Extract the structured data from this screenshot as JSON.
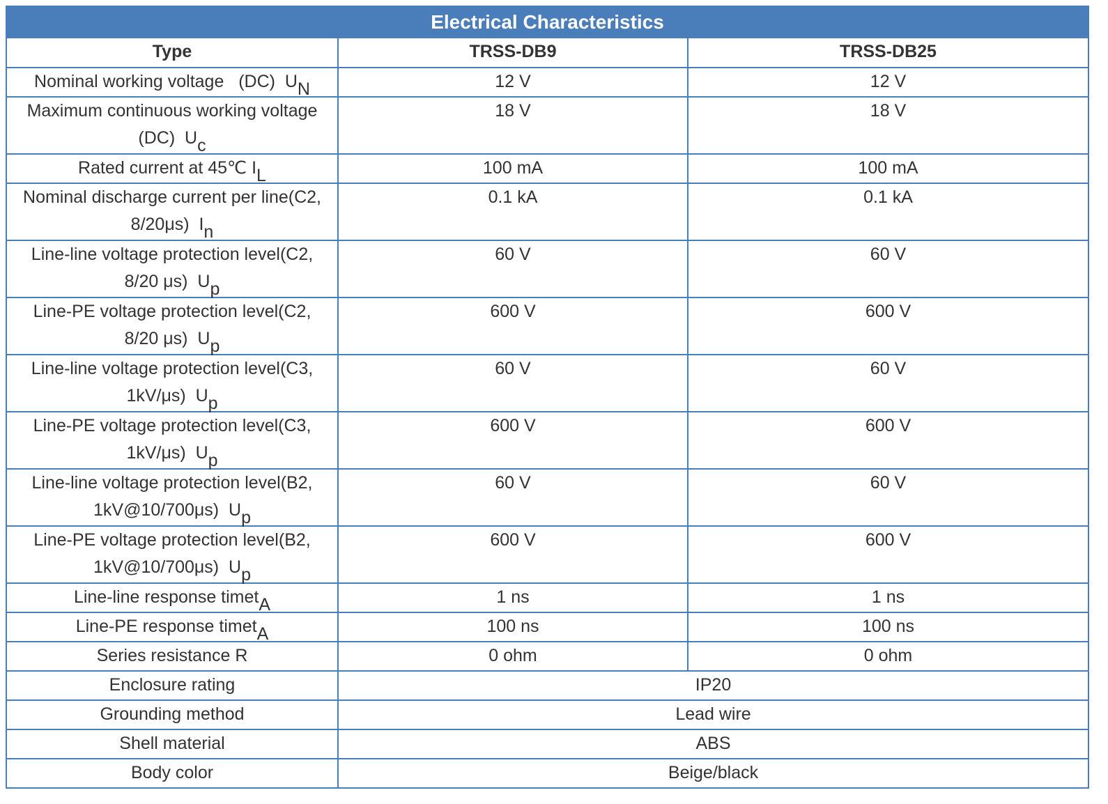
{
  "title": "Electrical Characteristics",
  "header": {
    "type_label": "Type",
    "model1": "TRSS-DB9",
    "model2": "TRSS-DB25"
  },
  "rows": [
    {
      "label": "Nominal working voltage   (DC)  U",
      "sub": "N",
      "v1": "12 V",
      "v2": "12 V"
    },
    {
      "label_line1": "Maximum continuous working voltage",
      "label_line2": "(DC)  U",
      "sub": "c",
      "v1": "18 V",
      "v2": "18 V"
    },
    {
      "label": "Rated current at 45℃ I",
      "sub": "L",
      "v1": "100 mA",
      "v2": "100 mA"
    },
    {
      "label_line1": "Nominal discharge current per line(C2,",
      "label_line2": "8/20μs)  I",
      "sub": "n",
      "v1": "0.1 kA",
      "v2": "0.1 kA"
    },
    {
      "label_line1": "Line-line voltage protection level(C2,",
      "label_line2": "8/20 μs)  U",
      "sub": "p",
      "v1": "60 V",
      "v2": "60 V"
    },
    {
      "label_line1": "Line-PE voltage protection level(C2,",
      "label_line2": "8/20 μs)  U",
      "sub": "p",
      "v1": "600 V",
      "v2": "600 V"
    },
    {
      "label_line1": "Line-line voltage protection level(C3,",
      "label_line2": "1kV/μs)  U",
      "sub": "p",
      "v1": "60 V",
      "v2": "60 V"
    },
    {
      "label_line1": "Line-PE voltage protection level(C3,",
      "label_line2": "1kV/μs)  U",
      "sub": "p",
      "v1": "600 V",
      "v2": "600 V"
    },
    {
      "label_line1": "Line-line voltage protection level(B2,",
      "label_line2": "1kV@10/700μs)  U",
      "sub": "p",
      "v1": "60 V",
      "v2": "60 V"
    },
    {
      "label_line1": "Line-PE voltage protection level(B2,",
      "label_line2": "1kV@10/700μs)  U",
      "sub": "p",
      "v1": "600 V",
      "v2": "600 V"
    },
    {
      "label": "Line-line response timet",
      "sub": "A",
      "v1": "1 ns",
      "v2": "1 ns"
    },
    {
      "label": "Line-PE response timet",
      "sub": "A",
      "v1": "100 ns",
      "v2": "100 ns"
    },
    {
      "label": "Series resistance R",
      "v1": "0 ohm",
      "v2": "0 ohm"
    }
  ],
  "merged_rows": [
    {
      "label": "Enclosure rating",
      "value": "IP20"
    },
    {
      "label": "Grounding method",
      "value": "Lead wire"
    },
    {
      "label": "Shell material",
      "value": "ABS"
    },
    {
      "label": "Body color",
      "value": "Beige/black"
    }
  ]
}
